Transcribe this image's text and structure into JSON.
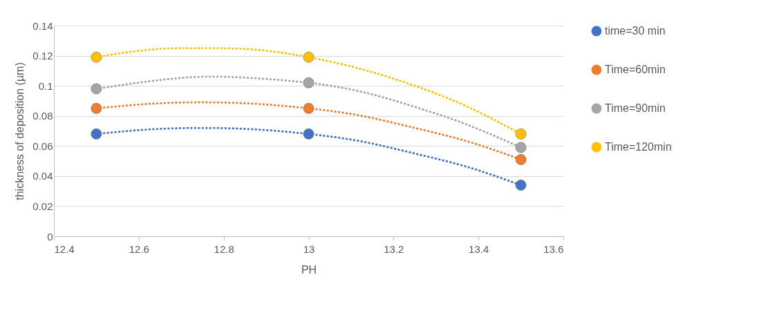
{
  "chart_data": {
    "type": "scatter",
    "xlabel": "PH",
    "ylabel": "thickness of deposition (µm)",
    "xlim": [
      12.4,
      13.6
    ],
    "xticks": [
      12.4,
      12.6,
      12.8,
      13,
      13.2,
      13.4,
      13.6
    ],
    "ylim": [
      0,
      0.14
    ],
    "yticks": [
      0,
      0.02,
      0.04,
      0.06,
      0.08,
      0.1,
      0.12,
      0.14
    ],
    "grid": "y",
    "legend": "right",
    "marker": "circle",
    "series": [
      {
        "name": "time=30 min",
        "color": "#4472c4",
        "x": [
          12.5,
          13,
          13.5
        ],
        "values": [
          0.068,
          0.068,
          0.034
        ]
      },
      {
        "name": "Time=60min",
        "color": "#ed7d31",
        "x": [
          12.5,
          13,
          13.5
        ],
        "values": [
          0.085,
          0.085,
          0.051
        ]
      },
      {
        "name": "Time=90min",
        "color": "#a5a5a5",
        "x": [
          12.5,
          13,
          13.5
        ],
        "values": [
          0.098,
          0.102,
          0.059
        ]
      },
      {
        "name": "Time=120min",
        "color": "#ffc000",
        "x": [
          12.5,
          13,
          13.5
        ],
        "values": [
          0.119,
          0.119,
          0.068
        ]
      },
      {
        "type": "line",
        "line_style": "dotted",
        "marker": "none",
        "color": "#4472c4",
        "x": [
          12.5,
          12.625,
          12.75,
          12.875,
          13,
          13.125,
          13.25,
          13.375,
          13.5
        ],
        "values": [
          0.068,
          0.071,
          0.072,
          0.071,
          0.068,
          0.063,
          0.055,
          0.046,
          0.034
        ]
      },
      {
        "type": "line",
        "line_style": "dotted",
        "marker": "none",
        "color": "#ed7d31",
        "x": [
          12.5,
          12.625,
          12.75,
          12.875,
          13,
          13.125,
          13.25,
          13.375,
          13.5
        ],
        "values": [
          0.085,
          0.088,
          0.089,
          0.088,
          0.085,
          0.08,
          0.072,
          0.063,
          0.051
        ]
      },
      {
        "type": "line",
        "line_style": "dotted",
        "marker": "none",
        "color": "#a5a5a5",
        "x": [
          12.5,
          12.625,
          12.75,
          12.875,
          13,
          13.125,
          13.25,
          13.375,
          13.5
        ],
        "values": [
          0.098,
          0.103,
          0.106,
          0.105,
          0.102,
          0.096,
          0.086,
          0.074,
          0.059
        ]
      },
      {
        "type": "line",
        "line_style": "dotted",
        "marker": "none",
        "color": "#ffc000",
        "x": [
          12.5,
          12.625,
          12.75,
          12.875,
          13,
          13.125,
          13.25,
          13.375,
          13.5
        ],
        "values": [
          0.119,
          0.124,
          0.125,
          0.124,
          0.119,
          0.111,
          0.1,
          0.086,
          0.068
        ]
      }
    ]
  }
}
